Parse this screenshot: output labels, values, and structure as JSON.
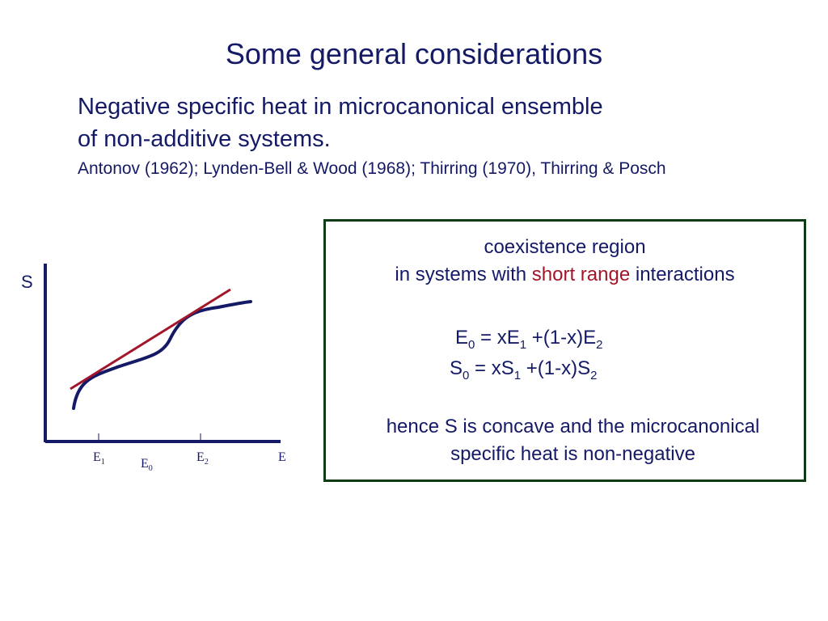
{
  "slide": {
    "title": "Some general considerations",
    "intro": {
      "line1": "Negative specific heat in microcanonical ensemble",
      "line2": "of non-additive systems.",
      "refs": "Antonov (1962); Lynden-Bell & Wood (1968); Thirring (1970), Thirring & Posch"
    },
    "figure": {
      "y_label": "S",
      "x_label": "E",
      "ticks": [
        {
          "base": "E",
          "sub": "1"
        },
        {
          "base": "E",
          "sub": "0"
        },
        {
          "base": "E",
          "sub": "2"
        }
      ],
      "colors": {
        "axes": "#141a66",
        "curve": "#141a66",
        "tangent": "#a3162a"
      }
    },
    "box": {
      "line1": "coexistence region",
      "line2_prefix": "in systems with ",
      "line2_highlight": "short range",
      "line2_suffix": " interactions",
      "eq1": {
        "a": "E",
        "a_sub": "0",
        "b": " = xE",
        "b_sub": "1",
        "c": " +(1-x)E",
        "c_sub": "2"
      },
      "eq2": {
        "a": "S",
        "a_sub": "0",
        "b": " = xS",
        "b_sub": "1",
        "c": " +(1-x)S",
        "c_sub": "2"
      },
      "conclusion1": "hence S is concave and the microcanonical",
      "conclusion2": "specific heat is non-negative",
      "colors": {
        "border": "#0e3a14",
        "highlight": "#a3162a"
      }
    }
  }
}
